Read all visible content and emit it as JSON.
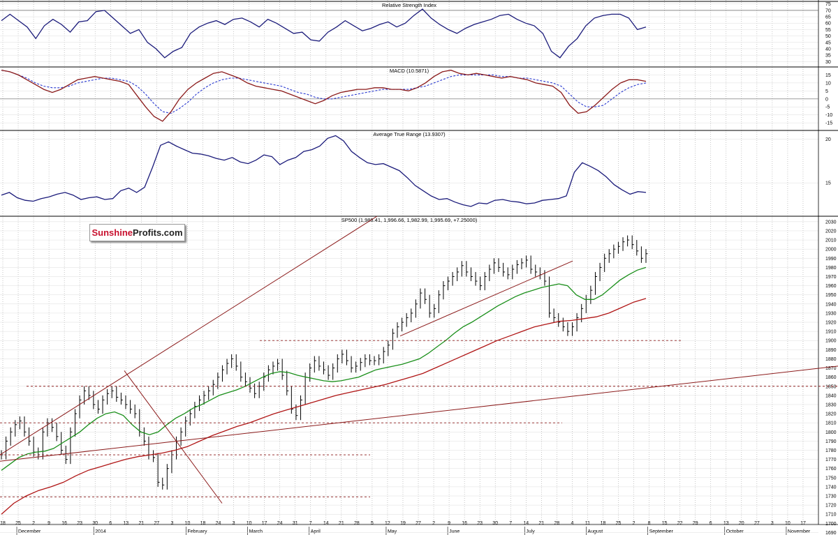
{
  "panels": {
    "rsi": {
      "title": "Relative Strength Index",
      "ticks": [
        30,
        35,
        40,
        45,
        50,
        55,
        60,
        65,
        70,
        75
      ],
      "ylim": [
        28,
        77
      ]
    },
    "macd": {
      "title": "MACD (10.5871)",
      "ticks": [
        -15,
        -10,
        -5,
        0,
        5,
        10,
        15
      ],
      "ylim": [
        -18,
        20
      ]
    },
    "atr": {
      "title": "Average True Range (13.9307)",
      "ticks": [
        15,
        20
      ],
      "ylim": [
        11.5,
        21
      ]
    },
    "price": {
      "title": "SP500 (1,988.41, 1,996.66, 1,982.99, 1,995.69, +7.25000)",
      "ticks": [
        1690,
        1700,
        1710,
        1720,
        1730,
        1740,
        1750,
        1760,
        1770,
        1780,
        1790,
        1800,
        1810,
        1820,
        1830,
        1840,
        1850,
        1860,
        1870,
        1880,
        1890,
        1900,
        1910,
        1920,
        1930,
        1940,
        1950,
        1960,
        1970,
        1980,
        1990,
        2000,
        2010,
        2020,
        2030
      ],
      "ylim": [
        1685,
        2036
      ]
    }
  },
  "logo": {
    "part1": "Sunshine",
    "part2": "Profits.com"
  },
  "x_axis": {
    "days": [
      "18",
      "25",
      "2",
      "9",
      "16",
      "23",
      "30",
      "6",
      "13",
      "21",
      "27",
      "3",
      "10",
      "18",
      "24",
      "3",
      "10",
      "17",
      "24",
      "31",
      "7",
      "14",
      "21",
      "28",
      "5",
      "12",
      "19",
      "27",
      "2",
      "9",
      "16",
      "23",
      "30",
      "7",
      "14",
      "21",
      "28",
      "4",
      "11",
      "18",
      "25",
      "2",
      "8",
      "15",
      "22",
      "29",
      "6",
      "13",
      "20",
      "27",
      "3",
      "10",
      "17"
    ],
    "months": [
      {
        "label": "December",
        "i": 1
      },
      {
        "label": "2014",
        "i": 6
      },
      {
        "label": "February",
        "i": 12
      },
      {
        "label": "March",
        "i": 16
      },
      {
        "label": "April",
        "i": 20
      },
      {
        "label": "May",
        "i": 25
      },
      {
        "label": "June",
        "i": 29
      },
      {
        "label": "July",
        "i": 34
      },
      {
        "label": "August",
        "i": 38
      },
      {
        "label": "September",
        "i": 42
      },
      {
        "label": "October",
        "i": 47
      },
      {
        "label": "November",
        "i": 51
      }
    ]
  },
  "colors": {
    "price": "#000000",
    "ma_fast": "#1a8f1a",
    "ma_slow": "#b01515",
    "trend": "#8b1a1a",
    "rsi": "#1a1a7a",
    "macd": "#8b1a1a",
    "signal": "#2a3ad0",
    "grid": "#a0a0a0"
  },
  "chart_data": [
    {
      "type": "line",
      "title": "Relative Strength Index",
      "ylim": [
        28,
        77
      ],
      "series": [
        {
          "values": [
            62,
            67,
            62,
            57,
            48,
            58,
            63,
            59,
            53,
            61,
            62,
            69,
            70,
            64,
            58,
            52,
            55,
            45,
            40,
            33,
            38,
            41,
            52,
            57,
            60,
            62,
            59,
            63,
            64,
            61,
            57,
            63,
            60,
            56,
            52,
            53,
            47,
            46,
            53,
            57,
            62,
            58,
            54,
            56,
            59,
            61,
            57,
            60,
            66,
            71,
            64,
            59,
            55,
            52,
            56,
            59,
            61,
            63,
            66,
            67,
            63,
            60,
            58,
            52,
            38,
            33,
            42,
            48,
            58,
            64,
            66,
            67,
            67,
            64,
            55,
            57
          ]
        }
      ]
    },
    {
      "type": "line",
      "title": "MACD (10.5871)",
      "ylim": [
        -18,
        20
      ],
      "series": [
        {
          "values": [
            18,
            17,
            15,
            12,
            9,
            6,
            4,
            6,
            9,
            12,
            13,
            14,
            13,
            12,
            11,
            9,
            2,
            -5,
            -11,
            -14,
            -8,
            0,
            6,
            10,
            13,
            16,
            17,
            15,
            13,
            10,
            8,
            7,
            6,
            5,
            3,
            1,
            -1,
            -3,
            -1,
            2,
            4,
            5,
            6,
            6,
            7,
            7,
            6,
            6,
            5,
            7,
            10,
            14,
            17,
            18,
            16,
            15,
            16,
            15,
            14,
            13,
            14,
            13,
            12,
            10,
            9,
            8,
            4,
            -4,
            -9,
            -8,
            -4,
            1,
            6,
            10,
            12,
            12,
            11
          ]
        },
        {
          "values": [
            18,
            17,
            15,
            13,
            10,
            8,
            7,
            7,
            8,
            10,
            11,
            12,
            13,
            13,
            12,
            11,
            8,
            3,
            -3,
            -8,
            -9,
            -6,
            -2,
            3,
            7,
            10,
            12,
            13,
            13,
            12,
            11,
            10,
            9,
            8,
            6,
            4,
            3,
            1,
            0,
            0,
            1,
            2,
            3,
            4,
            5,
            6,
            6,
            6,
            6,
            7,
            8,
            10,
            12,
            14,
            15,
            15,
            15,
            15,
            15,
            14,
            14,
            13,
            13,
            12,
            11,
            10,
            8,
            3,
            -2,
            -5,
            -5,
            -4,
            0,
            4,
            7,
            9,
            10
          ]
        }
      ]
    },
    {
      "type": "line",
      "title": "Average True Range (13.9307)",
      "ylim": [
        11.5,
        21
      ],
      "series": [
        {
          "values": [
            13.6,
            13.9,
            13.3,
            13.0,
            12.9,
            13.2,
            13.4,
            13.7,
            13.9,
            13.6,
            13.1,
            13.3,
            13.4,
            13.1,
            13.2,
            14.1,
            14.4,
            13.9,
            14.5,
            16.8,
            19.3,
            19.7,
            19.2,
            18.8,
            18.4,
            18.3,
            18.1,
            17.8,
            17.6,
            17.9,
            17.4,
            17.2,
            17.6,
            18.2,
            18.0,
            17.1,
            17.6,
            17.9,
            18.6,
            18.8,
            19.2,
            20.1,
            20.4,
            19.8,
            18.6,
            17.9,
            17.3,
            17.1,
            17.2,
            16.8,
            16.4,
            15.6,
            14.7,
            14.1,
            13.5,
            13.1,
            13.2,
            12.8,
            12.5,
            12.3,
            12.7,
            12.6,
            13.0,
            13.1,
            12.9,
            12.8,
            12.6,
            12.7,
            13.0,
            13.1,
            13.2,
            13.5,
            16.2,
            17.3,
            16.9,
            16.4,
            15.7,
            14.8,
            14.2,
            13.7,
            14.0,
            13.9
          ]
        }
      ]
    },
    {
      "type": "line",
      "title": "SP500 (1,988.41, 1,996.66, 1,982.99, 1,995.69, +7.25000)",
      "ylim": [
        1685,
        2036
      ],
      "series": [
        {
          "values": [
            1775,
            1790,
            1800,
            1808,
            1812,
            1800,
            1790,
            1778,
            1775,
            1800,
            1810,
            1805,
            1795,
            1780,
            1770,
            1800,
            1820,
            1835,
            1845,
            1840,
            1830,
            1825,
            1835,
            1842,
            1845,
            1838,
            1835,
            1830,
            1825,
            1820,
            1800,
            1790,
            1775,
            1772,
            1745,
            1742,
            1760,
            1775,
            1790,
            1800,
            1812,
            1820,
            1828,
            1835,
            1840,
            1845,
            1852,
            1860,
            1868,
            1875,
            1880,
            1872,
            1860,
            1855,
            1848,
            1842,
            1850,
            1860,
            1868,
            1872,
            1875,
            1862,
            1845,
            1825,
            1818,
            1835,
            1860,
            1870,
            1878,
            1872,
            1868,
            1862,
            1870,
            1880,
            1885,
            1878,
            1870,
            1872,
            1876,
            1880,
            1878,
            1878,
            1880,
            1888,
            1895,
            1908,
            1915,
            1920,
            1925,
            1930,
            1940,
            1952,
            1945,
            1930,
            1935,
            1950,
            1960,
            1965,
            1970,
            1975,
            1982,
            1975,
            1970,
            1965,
            1960,
            1970,
            1978,
            1985,
            1980,
            1975,
            1972,
            1978,
            1983,
            1985,
            1988,
            1978,
            1975,
            1972,
            1965,
            1930,
            1925,
            1920,
            1915,
            1910,
            1915,
            1925,
            1935,
            1945,
            1955,
            1970,
            1980,
            1990,
            1995,
            2000,
            2003,
            2008,
            2010,
            2005,
            1998,
            1990,
            1995
          ]
        },
        {
          "values": [
            1758,
            1765,
            1772,
            1776,
            1778,
            1779,
            1782,
            1788,
            1794,
            1800,
            1808,
            1815,
            1820,
            1822,
            1818,
            1808,
            1800,
            1797,
            1800,
            1808,
            1815,
            1820,
            1826,
            1830,
            1835,
            1840,
            1843,
            1846,
            1850,
            1855,
            1860,
            1864,
            1866,
            1865,
            1862,
            1860,
            1858,
            1856,
            1855,
            1856,
            1858,
            1860,
            1864,
            1868,
            1870,
            1872,
            1874,
            1877,
            1880,
            1886,
            1893,
            1900,
            1908,
            1915,
            1920,
            1926,
            1932,
            1938,
            1943,
            1948,
            1952,
            1955,
            1958,
            1960,
            1962,
            1960,
            1950,
            1945,
            1945,
            1950,
            1958,
            1966,
            1972,
            1977,
            1980
          ]
        },
        {
          "values": [
            1710,
            1722,
            1730,
            1736,
            1740,
            1745,
            1752,
            1758,
            1762,
            1766,
            1770,
            1773,
            1775,
            1777,
            1780,
            1784,
            1790,
            1796,
            1801,
            1806,
            1810,
            1815,
            1820,
            1824,
            1828,
            1832,
            1836,
            1840,
            1843,
            1846,
            1849,
            1852,
            1856,
            1860,
            1864,
            1870,
            1876,
            1882,
            1888,
            1894,
            1900,
            1905,
            1910,
            1915,
            1918,
            1921,
            1922,
            1924,
            1926,
            1930,
            1936,
            1942,
            1946
          ]
        }
      ]
    }
  ]
}
